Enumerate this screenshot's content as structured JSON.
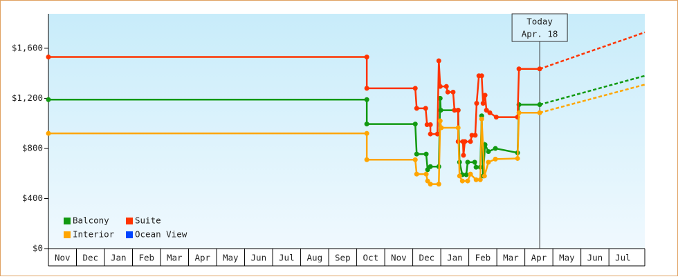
{
  "chart_data": {
    "type": "line",
    "ylim": [
      0,
      1875
    ],
    "yticks": [
      {
        "value": 0,
        "label": "$0"
      },
      {
        "value": 400,
        "label": "$400"
      },
      {
        "value": 800,
        "label": "$800"
      },
      {
        "value": 1200,
        "label": "$1,200"
      },
      {
        "value": 1600,
        "label": "$1,600"
      }
    ],
    "xlim": [
      0,
      21.28
    ],
    "xticks": [
      {
        "value": 0,
        "label": "Nov"
      },
      {
        "value": 1,
        "label": "Dec"
      },
      {
        "value": 2,
        "label": "Jan"
      },
      {
        "value": 3,
        "label": "Feb"
      },
      {
        "value": 4,
        "label": "Mar"
      },
      {
        "value": 5,
        "label": "Apr"
      },
      {
        "value": 6,
        "label": "May"
      },
      {
        "value": 7,
        "label": "Jun"
      },
      {
        "value": 8,
        "label": "Jul"
      },
      {
        "value": 9,
        "label": "Aug"
      },
      {
        "value": 10,
        "label": "Sep"
      },
      {
        "value": 11,
        "label": "Oct"
      },
      {
        "value": 12,
        "label": "Nov"
      },
      {
        "value": 13,
        "label": "Dec"
      },
      {
        "value": 14,
        "label": "Jan"
      },
      {
        "value": 15,
        "label": "Feb"
      },
      {
        "value": 16,
        "label": "Mar"
      },
      {
        "value": 17,
        "label": "Apr"
      },
      {
        "value": 18,
        "label": "May"
      },
      {
        "value": 19,
        "label": "Jun"
      },
      {
        "value": 20,
        "label": "Jul"
      }
    ],
    "legend": "lower left",
    "annotation": {
      "x": 17.53,
      "lines": [
        "Today",
        "Apr. 18"
      ]
    },
    "series": [
      {
        "name": "Balcony",
        "color": "#119911",
        "x": [
          0,
          11.36,
          11.36,
          13.09,
          13.14,
          13.48,
          13.53,
          13.63,
          13.93,
          13.98,
          14.0,
          14.62,
          14.67,
          14.77,
          14.91,
          14.96,
          15.21,
          15.26,
          15.41,
          15.46,
          15.51,
          15.58,
          15.7,
          15.95,
          16.74,
          16.79,
          17.53
        ],
        "values": [
          1190,
          1190,
          995,
          995,
          755,
          755,
          630,
          655,
          655,
          1200,
          1105,
          1105,
          690,
          590,
          590,
          690,
          690,
          650,
          650,
          1060,
          580,
          830,
          775,
          800,
          765,
          1150,
          1150
        ],
        "forecast": {
          "x": [
            17.53,
            21.28
          ],
          "values": [
            1150,
            1380
          ]
        }
      },
      {
        "name": "Suite",
        "color": "#ff3300",
        "x": [
          0,
          11.36,
          11.36,
          13.09,
          13.14,
          13.46,
          13.51,
          13.63,
          13.63,
          13.88,
          13.93,
          13.98,
          14.2,
          14.25,
          14.44,
          14.49,
          14.62,
          14.62,
          14.79,
          14.81,
          14.86,
          15.06,
          15.11,
          15.23,
          15.28,
          15.36,
          15.46,
          15.51,
          15.58,
          15.63,
          15.75,
          15.98,
          16.74,
          16.79,
          17.53
        ],
        "values": [
          1530,
          1530,
          1280,
          1280,
          1120,
          1120,
          990,
          990,
          915,
          915,
          1500,
          1295,
          1295,
          1250,
          1250,
          1105,
          1105,
          855,
          855,
          745,
          855,
          855,
          905,
          905,
          1160,
          1380,
          1380,
          1160,
          1225,
          1105,
          1085,
          1050,
          1050,
          1435,
          1435
        ],
        "forecast": {
          "x": [
            17.53,
            21.28
          ],
          "values": [
            1435,
            1727
          ]
        }
      },
      {
        "name": "Interior",
        "color": "#ffa500",
        "x": [
          0,
          11.36,
          11.36,
          13.09,
          13.14,
          13.48,
          13.53,
          13.63,
          13.93,
          13.98,
          14.02,
          14.62,
          14.67,
          14.77,
          14.96,
          15.06,
          15.26,
          15.41,
          15.46,
          15.56,
          15.7,
          15.95,
          16.74,
          16.79,
          17.53
        ],
        "values": [
          920,
          920,
          710,
          710,
          595,
          595,
          540,
          515,
          515,
          1020,
          965,
          965,
          580,
          540,
          540,
          595,
          550,
          550,
          1035,
          580,
          690,
          715,
          720,
          1085,
          1085
        ],
        "forecast": {
          "x": [
            17.53,
            21.28
          ],
          "values": [
            1085,
            1310
          ]
        }
      },
      {
        "name": "Ocean View",
        "color": "#0044ff",
        "x": [],
        "values": []
      }
    ]
  }
}
